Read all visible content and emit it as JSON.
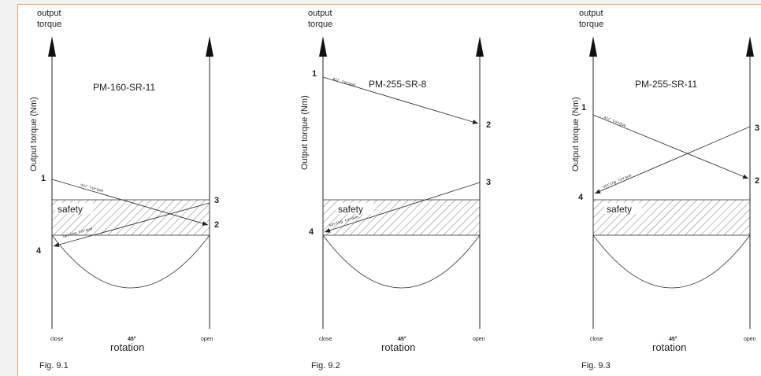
{
  "figures": [
    {
      "fig_label": "Fig. 9.1",
      "model": "PM-160-SR-11",
      "y_top_label_1": "output",
      "y_top_label_2": "torque",
      "y_axis_label": "Output torque (Nm)",
      "x_axis_label": "rotation",
      "tick_close": "close",
      "tick_mid": "45°",
      "tick_open": "open",
      "safety_label": "safety",
      "air_label": "air torque",
      "spring_label": "spring torque",
      "pt1": "1",
      "pt2": "2",
      "pt3": "3",
      "pt4": "4"
    },
    {
      "fig_label": "Fig. 9.2",
      "model": "PM-255-SR-8",
      "y_top_label_1": "output",
      "y_top_label_2": "torque",
      "y_axis_label": "Output torque (Nm)",
      "x_axis_label": "rotation",
      "tick_close": "close",
      "tick_mid": "45°",
      "tick_open": "open",
      "safety_label": "safety",
      "air_label": "air torque",
      "spring_label": "spring torque",
      "pt1": "1",
      "pt2": "2",
      "pt3": "3",
      "pt4": "4"
    },
    {
      "fig_label": "Fig. 9.3",
      "model": "PM-255-SR-11",
      "y_top_label_1": "output",
      "y_top_label_2": "torque",
      "y_axis_label": "Output torque (Nm)",
      "x_axis_label": "rotation",
      "tick_close": "close",
      "tick_mid": "45°",
      "tick_open": "open",
      "safety_label": "safety",
      "air_label": "air torque",
      "spring_label": "spring torque",
      "pt1": "1",
      "pt2": "2",
      "pt3": "3",
      "pt4": "4"
    }
  ],
  "colors": {
    "sheet_border": "#f0a050",
    "line": "#333333",
    "hatch": "#555555"
  }
}
